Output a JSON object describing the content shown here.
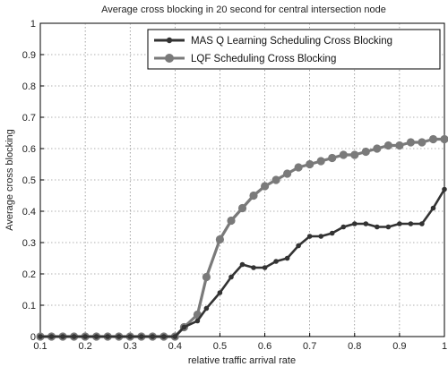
{
  "chart_data": {
    "type": "line",
    "title": "Average cross blocking in 20 second for central intersection node",
    "xlabel": "relative traffic arrival rate",
    "ylabel": "Average cross blocking",
    "xlim": [
      0.1,
      1.0
    ],
    "ylim": [
      0,
      1
    ],
    "x_ticks": [
      "0.1",
      "0.2",
      "0.3",
      "0.4",
      "0.5",
      "0.6",
      "0.7",
      "0.8",
      "0.9",
      "1"
    ],
    "y_ticks": [
      "0",
      "0.1",
      "0.2",
      "0.3",
      "0.4",
      "0.5",
      "0.6",
      "0.7",
      "0.8",
      "0.9",
      "1"
    ],
    "grid": true,
    "legend_position": "top-right",
    "series": [
      {
        "name": "MAS Q Learning Scheduling Cross Blocking",
        "color": "#333333",
        "marker": "small-dot",
        "points": [
          [
            0.1,
            0.0
          ],
          [
            0.125,
            0.0
          ],
          [
            0.15,
            0.0
          ],
          [
            0.175,
            0.0
          ],
          [
            0.2,
            0.0
          ],
          [
            0.225,
            0.0
          ],
          [
            0.25,
            0.0
          ],
          [
            0.275,
            0.0
          ],
          [
            0.3,
            0.0
          ],
          [
            0.325,
            0.0
          ],
          [
            0.35,
            0.0
          ],
          [
            0.375,
            0.0
          ],
          [
            0.4,
            0.0
          ],
          [
            0.42,
            0.03
          ],
          [
            0.45,
            0.05
          ],
          [
            0.47,
            0.09
          ],
          [
            0.5,
            0.14
          ],
          [
            0.525,
            0.19
          ],
          [
            0.55,
            0.23
          ],
          [
            0.575,
            0.22
          ],
          [
            0.6,
            0.22
          ],
          [
            0.625,
            0.24
          ],
          [
            0.65,
            0.25
          ],
          [
            0.675,
            0.29
          ],
          [
            0.7,
            0.32
          ],
          [
            0.725,
            0.32
          ],
          [
            0.75,
            0.33
          ],
          [
            0.775,
            0.35
          ],
          [
            0.8,
            0.36
          ],
          [
            0.825,
            0.36
          ],
          [
            0.85,
            0.35
          ],
          [
            0.875,
            0.35
          ],
          [
            0.9,
            0.36
          ],
          [
            0.925,
            0.36
          ],
          [
            0.95,
            0.36
          ],
          [
            0.975,
            0.41
          ],
          [
            1.0,
            0.47
          ]
        ]
      },
      {
        "name": "LQF Scheduling Cross Blocking",
        "color": "#7a7a7a",
        "marker": "large-dot",
        "points": [
          [
            0.1,
            0.0
          ],
          [
            0.125,
            0.0
          ],
          [
            0.15,
            0.0
          ],
          [
            0.175,
            0.0
          ],
          [
            0.2,
            0.0
          ],
          [
            0.225,
            0.0
          ],
          [
            0.25,
            0.0
          ],
          [
            0.275,
            0.0
          ],
          [
            0.3,
            0.0
          ],
          [
            0.325,
            0.0
          ],
          [
            0.35,
            0.0
          ],
          [
            0.375,
            0.0
          ],
          [
            0.4,
            0.0
          ],
          [
            0.42,
            0.03
          ],
          [
            0.45,
            0.07
          ],
          [
            0.47,
            0.19
          ],
          [
            0.5,
            0.31
          ],
          [
            0.525,
            0.37
          ],
          [
            0.55,
            0.41
          ],
          [
            0.575,
            0.45
          ],
          [
            0.6,
            0.48
          ],
          [
            0.625,
            0.5
          ],
          [
            0.65,
            0.52
          ],
          [
            0.675,
            0.54
          ],
          [
            0.7,
            0.55
          ],
          [
            0.725,
            0.56
          ],
          [
            0.75,
            0.57
          ],
          [
            0.775,
            0.58
          ],
          [
            0.8,
            0.58
          ],
          [
            0.825,
            0.59
          ],
          [
            0.85,
            0.6
          ],
          [
            0.875,
            0.61
          ],
          [
            0.9,
            0.61
          ],
          [
            0.925,
            0.62
          ],
          [
            0.95,
            0.62
          ],
          [
            0.975,
            0.63
          ],
          [
            1.0,
            0.63
          ]
        ]
      }
    ]
  }
}
